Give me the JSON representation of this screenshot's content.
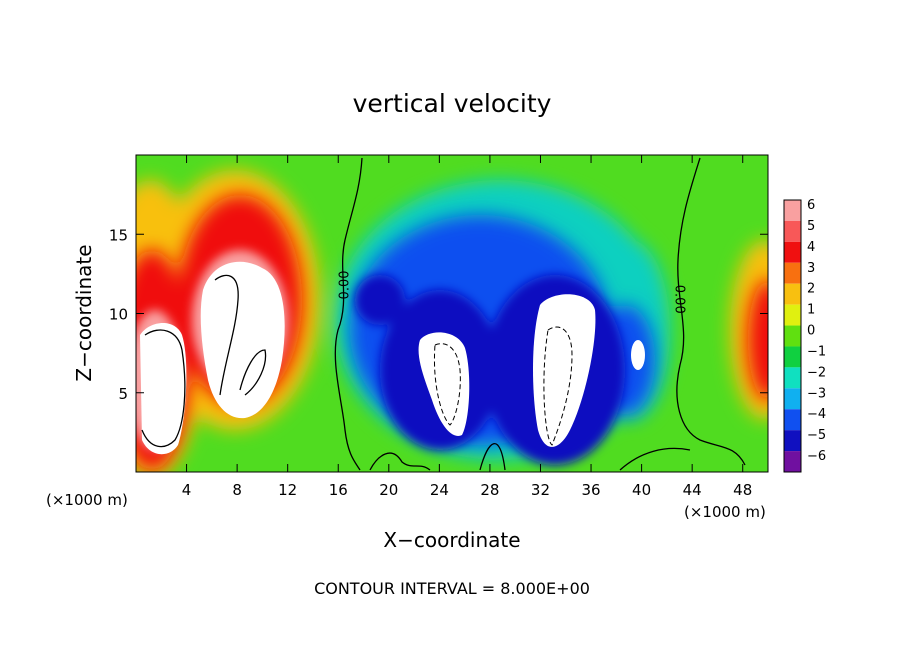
{
  "chart_data": {
    "type": "heatmap",
    "title": "vertical velocity",
    "xlabel": "X−coordinate",
    "ylabel": "Z−coordinate",
    "x_unit_left": "(×1000 m)",
    "x_unit_right": "(×1000 m)",
    "footer": "CONTOUR INTERVAL = 8.000E+00",
    "xlim": [
      0,
      50
    ],
    "ylim": [
      0,
      20
    ],
    "x_ticks": [
      4,
      8,
      12,
      16,
      20,
      24,
      28,
      32,
      36,
      40,
      44,
      48
    ],
    "x_tick_labels": [
      "4",
      "8",
      "12",
      "16",
      "20",
      "24",
      "28",
      "32",
      "36",
      "40",
      "44",
      "48"
    ],
    "y_ticks": [
      5,
      10,
      15
    ],
    "y_tick_labels": [
      "5",
      "10",
      "15"
    ],
    "contour_labels": [
      {
        "text": "0.00",
        "x": 16.8,
        "y": 11.8,
        "rotate": -90
      },
      {
        "text": "0.00",
        "x": 42.7,
        "y": 10.9,
        "rotate": 90
      }
    ],
    "colorbar": {
      "levels": [
        6,
        5,
        4,
        3,
        2,
        1,
        0,
        -1,
        -2,
        -3,
        -4,
        -5,
        -6
      ],
      "level_labels": [
        "6",
        "5",
        "4",
        "3",
        "2",
        "1",
        "0",
        "−1",
        "−2",
        "−3",
        "−4",
        "−5",
        "−6"
      ],
      "colors": [
        "#f9a0a0",
        "#f85858",
        "#f01010",
        "#f87010",
        "#f8c010",
        "#e0f010",
        "#60e010",
        "#10d040",
        "#10e0c0",
        "#10b0f0",
        "#1050f0",
        "#1010c0",
        "#7010a0"
      ]
    },
    "features": [
      {
        "kind": "updraft-blob",
        "x": 1.5,
        "y": 6.0,
        "rx": 2.2,
        "ry": 5.5,
        "w": 8.0
      },
      {
        "kind": "updraft-blob",
        "x": 7.8,
        "y": 10.0,
        "rx": 2.2,
        "ry": 6.5,
        "w": 8.0
      },
      {
        "kind": "updraft-blob",
        "x": 10.0,
        "y": 9.0,
        "rx": 1.8,
        "ry": 4.0,
        "w": 6.0
      },
      {
        "kind": "downdraft-blob",
        "x": 26.0,
        "y": 6.5,
        "rx": 1.6,
        "ry": 4.0,
        "w": -8.0
      },
      {
        "kind": "downdraft-blob",
        "x": 33.0,
        "y": 6.5,
        "rx": 2.0,
        "ry": 5.5,
        "w": -8.0
      },
      {
        "kind": "downdraft-blob",
        "x": 39.5,
        "y": 7.5,
        "rx": 0.8,
        "ry": 1.5,
        "w": -6.0
      }
    ]
  }
}
